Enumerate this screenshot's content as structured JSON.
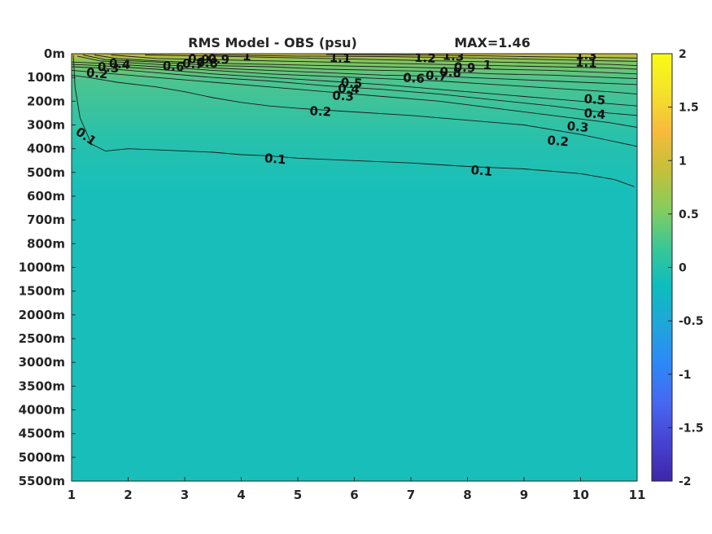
{
  "chart_data": {
    "type": "heatmap",
    "title": "RMS Model - OBS (psu)",
    "max_label": "MAX=1.46",
    "x_ticks": [
      "1",
      "2",
      "3",
      "4",
      "5",
      "6",
      "7",
      "8",
      "9",
      "10",
      "11"
    ],
    "xlim": [
      1,
      11
    ],
    "y_ticks": [
      "0m",
      "100m",
      "200m",
      "300m",
      "400m",
      "500m",
      "600m",
      "700m",
      "800m",
      "1000m",
      "1500m",
      "2000m",
      "2500m",
      "3000m",
      "3500m",
      "4000m",
      "4500m",
      "5000m",
      "5500m"
    ],
    "colorbar": {
      "ticks": [
        "2",
        "1.5",
        "1",
        "0.5",
        "0",
        "-0.5",
        "-1",
        "-1.5",
        "-2"
      ],
      "range": [
        -2,
        2
      ],
      "colors": [
        "#3e26a8",
        "#4742d1",
        "#4767f0",
        "#2e87f7",
        "#20a5db",
        "#0dbcbf",
        "#39c797",
        "#86cd5e",
        "#c4c03a",
        "#f7ba3c",
        "#f5e22b",
        "#f9fb15"
      ]
    },
    "colors": {
      "deep": "#18bfba",
      "mid": "#27c1ac",
      "shallow": "#4dc48f",
      "upper": "#86c75b",
      "top": "#d6b836"
    },
    "contours": [
      {
        "level": "0.1",
        "points": [
          [
            1.03,
            0.05
          ],
          [
            1.06,
            1.4
          ],
          [
            1.15,
            2.7
          ],
          [
            1.35,
            3.8
          ],
          [
            1.6,
            4.1
          ],
          [
            2.0,
            4.0
          ],
          [
            2.5,
            4.05
          ],
          [
            3.0,
            4.1
          ],
          [
            3.5,
            4.15
          ],
          [
            4.0,
            4.25
          ],
          [
            4.5,
            4.3
          ],
          [
            5.0,
            4.4
          ],
          [
            6.0,
            4.5
          ],
          [
            7.0,
            4.6
          ],
          [
            8.0,
            4.75
          ],
          [
            9.0,
            4.85
          ],
          [
            10.0,
            5.05
          ],
          [
            10.6,
            5.3
          ],
          [
            10.95,
            5.6
          ]
        ]
      },
      {
        "level": "0.2",
        "points": [
          [
            1.0,
            0.9
          ],
          [
            1.3,
            1.0
          ],
          [
            1.8,
            1.2
          ],
          [
            2.5,
            1.4
          ],
          [
            3.0,
            1.6
          ],
          [
            3.5,
            1.85
          ],
          [
            4.0,
            2.05
          ],
          [
            4.5,
            2.2
          ],
          [
            5.0,
            2.3
          ],
          [
            6.0,
            2.45
          ],
          [
            7.0,
            2.6
          ],
          [
            8.0,
            2.8
          ],
          [
            9.0,
            3.0
          ],
          [
            10.0,
            3.4
          ],
          [
            11.0,
            3.9
          ]
        ]
      },
      {
        "level": "0.3",
        "points": [
          [
            1.0,
            0.7
          ],
          [
            1.5,
            0.8
          ],
          [
            2.5,
            1.0
          ],
          [
            3.5,
            1.2
          ],
          [
            4.5,
            1.4
          ],
          [
            5.5,
            1.6
          ],
          [
            6.5,
            1.8
          ],
          [
            7.5,
            2.0
          ],
          [
            8.5,
            2.3
          ],
          [
            9.5,
            2.6
          ],
          [
            10.5,
            2.9
          ],
          [
            11.0,
            3.1
          ]
        ]
      },
      {
        "level": "0.4",
        "points": [
          [
            1.0,
            0.55
          ],
          [
            1.5,
            0.6
          ],
          [
            2.5,
            0.8
          ],
          [
            3.5,
            1.0
          ],
          [
            4.5,
            1.15
          ],
          [
            5.5,
            1.35
          ],
          [
            6.5,
            1.5
          ],
          [
            7.5,
            1.7
          ],
          [
            8.5,
            1.95
          ],
          [
            9.5,
            2.2
          ],
          [
            10.5,
            2.5
          ],
          [
            11.0,
            2.6
          ]
        ]
      },
      {
        "level": "0.5",
        "points": [
          [
            1.0,
            0.45
          ],
          [
            1.5,
            0.5
          ],
          [
            2.5,
            0.65
          ],
          [
            3.5,
            0.85
          ],
          [
            4.5,
            1.0
          ],
          [
            5.5,
            1.15
          ],
          [
            6.5,
            1.3
          ],
          [
            7.5,
            1.5
          ],
          [
            8.5,
            1.7
          ],
          [
            9.5,
            1.9
          ],
          [
            10.5,
            2.1
          ],
          [
            11.0,
            2.2
          ]
        ]
      },
      {
        "level": "0.6",
        "points": [
          [
            1.0,
            0.35
          ],
          [
            1.5,
            0.4
          ],
          [
            2.5,
            0.55
          ],
          [
            3.5,
            0.7
          ],
          [
            4.5,
            0.85
          ],
          [
            5.5,
            0.95
          ],
          [
            6.5,
            1.05
          ],
          [
            7.5,
            1.15
          ],
          [
            8.5,
            1.3
          ],
          [
            9.5,
            1.45
          ],
          [
            10.5,
            1.6
          ],
          [
            11.0,
            1.7
          ]
        ]
      },
      {
        "level": "0.7",
        "points": [
          [
            1.1,
            0.1
          ],
          [
            1.5,
            0.3
          ],
          [
            2.5,
            0.45
          ],
          [
            3.5,
            0.6
          ],
          [
            4.5,
            0.7
          ],
          [
            5.5,
            0.8
          ],
          [
            6.5,
            0.9
          ],
          [
            7.5,
            0.95
          ],
          [
            8.5,
            1.05
          ],
          [
            9.5,
            1.15
          ],
          [
            10.5,
            1.25
          ],
          [
            11.0,
            1.3
          ]
        ]
      },
      {
        "level": "0.8",
        "points": [
          [
            1.2,
            0.05
          ],
          [
            1.6,
            0.25
          ],
          [
            2.5,
            0.35
          ],
          [
            3.5,
            0.5
          ],
          [
            4.5,
            0.55
          ],
          [
            5.5,
            0.65
          ],
          [
            6.5,
            0.7
          ],
          [
            7.5,
            0.75
          ],
          [
            8.5,
            0.85
          ],
          [
            9.5,
            0.9
          ],
          [
            10.5,
            1.0
          ],
          [
            11.0,
            1.05
          ]
        ]
      },
      {
        "level": "0.9",
        "points": [
          [
            1.4,
            0.05
          ],
          [
            1.8,
            0.2
          ],
          [
            2.5,
            0.3
          ],
          [
            3.5,
            0.4
          ],
          [
            4.5,
            0.45
          ],
          [
            5.5,
            0.5
          ],
          [
            6.5,
            0.55
          ],
          [
            7.5,
            0.6
          ],
          [
            8.5,
            0.65
          ],
          [
            9.5,
            0.7
          ],
          [
            10.5,
            0.8
          ],
          [
            11.0,
            0.85
          ]
        ]
      },
      {
        "level": "1",
        "points": [
          [
            1.7,
            0.05
          ],
          [
            2.5,
            0.2
          ],
          [
            3.5,
            0.25
          ],
          [
            4.5,
            0.3
          ],
          [
            5.5,
            0.35
          ],
          [
            6.5,
            0.4
          ],
          [
            7.5,
            0.45
          ],
          [
            8.5,
            0.5
          ],
          [
            9.5,
            0.55
          ],
          [
            10.5,
            0.6
          ],
          [
            11.0,
            0.65
          ]
        ]
      },
      {
        "level": "1.1",
        "points": [
          [
            2.3,
            0.05
          ],
          [
            3.5,
            0.1
          ],
          [
            4.5,
            0.15
          ],
          [
            5.5,
            0.2
          ],
          [
            6.5,
            0.25
          ],
          [
            7.5,
            0.3
          ],
          [
            8.5,
            0.35
          ],
          [
            9.5,
            0.4
          ],
          [
            10.5,
            0.45
          ],
          [
            11.0,
            0.5
          ]
        ]
      },
      {
        "level": "1.2",
        "points": [
          [
            3.5,
            0.05
          ],
          [
            5.0,
            0.1
          ],
          [
            6.5,
            0.12
          ],
          [
            7.5,
            0.15
          ],
          [
            8.5,
            0.2
          ],
          [
            9.5,
            0.25
          ],
          [
            10.5,
            0.3
          ],
          [
            11.0,
            0.32
          ]
        ]
      },
      {
        "level": "1.3",
        "points": [
          [
            5.5,
            0.03
          ],
          [
            7.0,
            0.05
          ],
          [
            8.0,
            0.08
          ],
          [
            9.0,
            0.12
          ],
          [
            10.0,
            0.15
          ],
          [
            11.0,
            0.18
          ]
        ]
      }
    ],
    "contour_labels": [
      {
        "text": "0.1",
        "x": 1.25,
        "y": 3.5,
        "rot": 35
      },
      {
        "text": "0.1",
        "x": 4.6,
        "y": 4.45,
        "rot": 5
      },
      {
        "text": "0.1",
        "x": 8.25,
        "y": 4.95,
        "rot": 5
      },
      {
        "text": "0.2",
        "x": 1.45,
        "y": 0.85,
        "rot": 5
      },
      {
        "text": "0.2",
        "x": 5.4,
        "y": 2.45,
        "rot": 3
      },
      {
        "text": "0.2",
        "x": 9.6,
        "y": 3.7,
        "rot": 5
      },
      {
        "text": "0.3",
        "x": 1.65,
        "y": 0.6,
        "rot": 5
      },
      {
        "text": "0.3",
        "x": 5.8,
        "y": 1.8,
        "rot": 3
      },
      {
        "text": "0.3",
        "x": 9.95,
        "y": 3.1,
        "rot": 5
      },
      {
        "text": "0.4",
        "x": 1.85,
        "y": 0.45,
        "rot": 5
      },
      {
        "text": "0.4",
        "x": 5.9,
        "y": 1.5,
        "rot": 3
      },
      {
        "text": "0.4",
        "x": 10.25,
        "y": 2.55,
        "rot": 5
      },
      {
        "text": "0.5",
        "x": 5.95,
        "y": 1.25,
        "rot": 3
      },
      {
        "text": "0.5",
        "x": 10.25,
        "y": 1.95,
        "rot": 5
      },
      {
        "text": "0.6",
        "x": 2.8,
        "y": 0.55,
        "rot": 3
      },
      {
        "text": "0.6",
        "x": 7.05,
        "y": 1.05,
        "rot": 3
      },
      {
        "text": "0.7",
        "x": 3.15,
        "y": 0.45,
        "rot": 3
      },
      {
        "text": "0.7",
        "x": 7.45,
        "y": 0.95,
        "rot": 3
      },
      {
        "text": "0.8",
        "x": 3.4,
        "y": 0.4,
        "rot": 3
      },
      {
        "text": "0.8",
        "x": 7.7,
        "y": 0.8,
        "rot": 3
      },
      {
        "text": "0.9",
        "x": 3.25,
        "y": 0.25,
        "rot": 3
      },
      {
        "text": "0.9",
        "x": 7.95,
        "y": 0.6,
        "rot": 3
      },
      {
        "text": "0.9",
        "x": 3.6,
        "y": 0.25,
        "rot": 3
      },
      {
        "text": "1",
        "x": 4.1,
        "y": 0.12,
        "rot": 3
      },
      {
        "text": "1",
        "x": 8.35,
        "y": 0.5,
        "rot": 3
      },
      {
        "text": "1.1",
        "x": 5.75,
        "y": 0.2,
        "rot": 3
      },
      {
        "text": "1.1",
        "x": 10.1,
        "y": 0.4,
        "rot": 3
      },
      {
        "text": "1.2",
        "x": 7.25,
        "y": 0.2,
        "rot": 3
      },
      {
        "text": "1.3",
        "x": 7.75,
        "y": 0.12,
        "rot": 3
      },
      {
        "text": "1.3",
        "x": 10.1,
        "y": 0.08,
        "rot": 3
      }
    ]
  }
}
